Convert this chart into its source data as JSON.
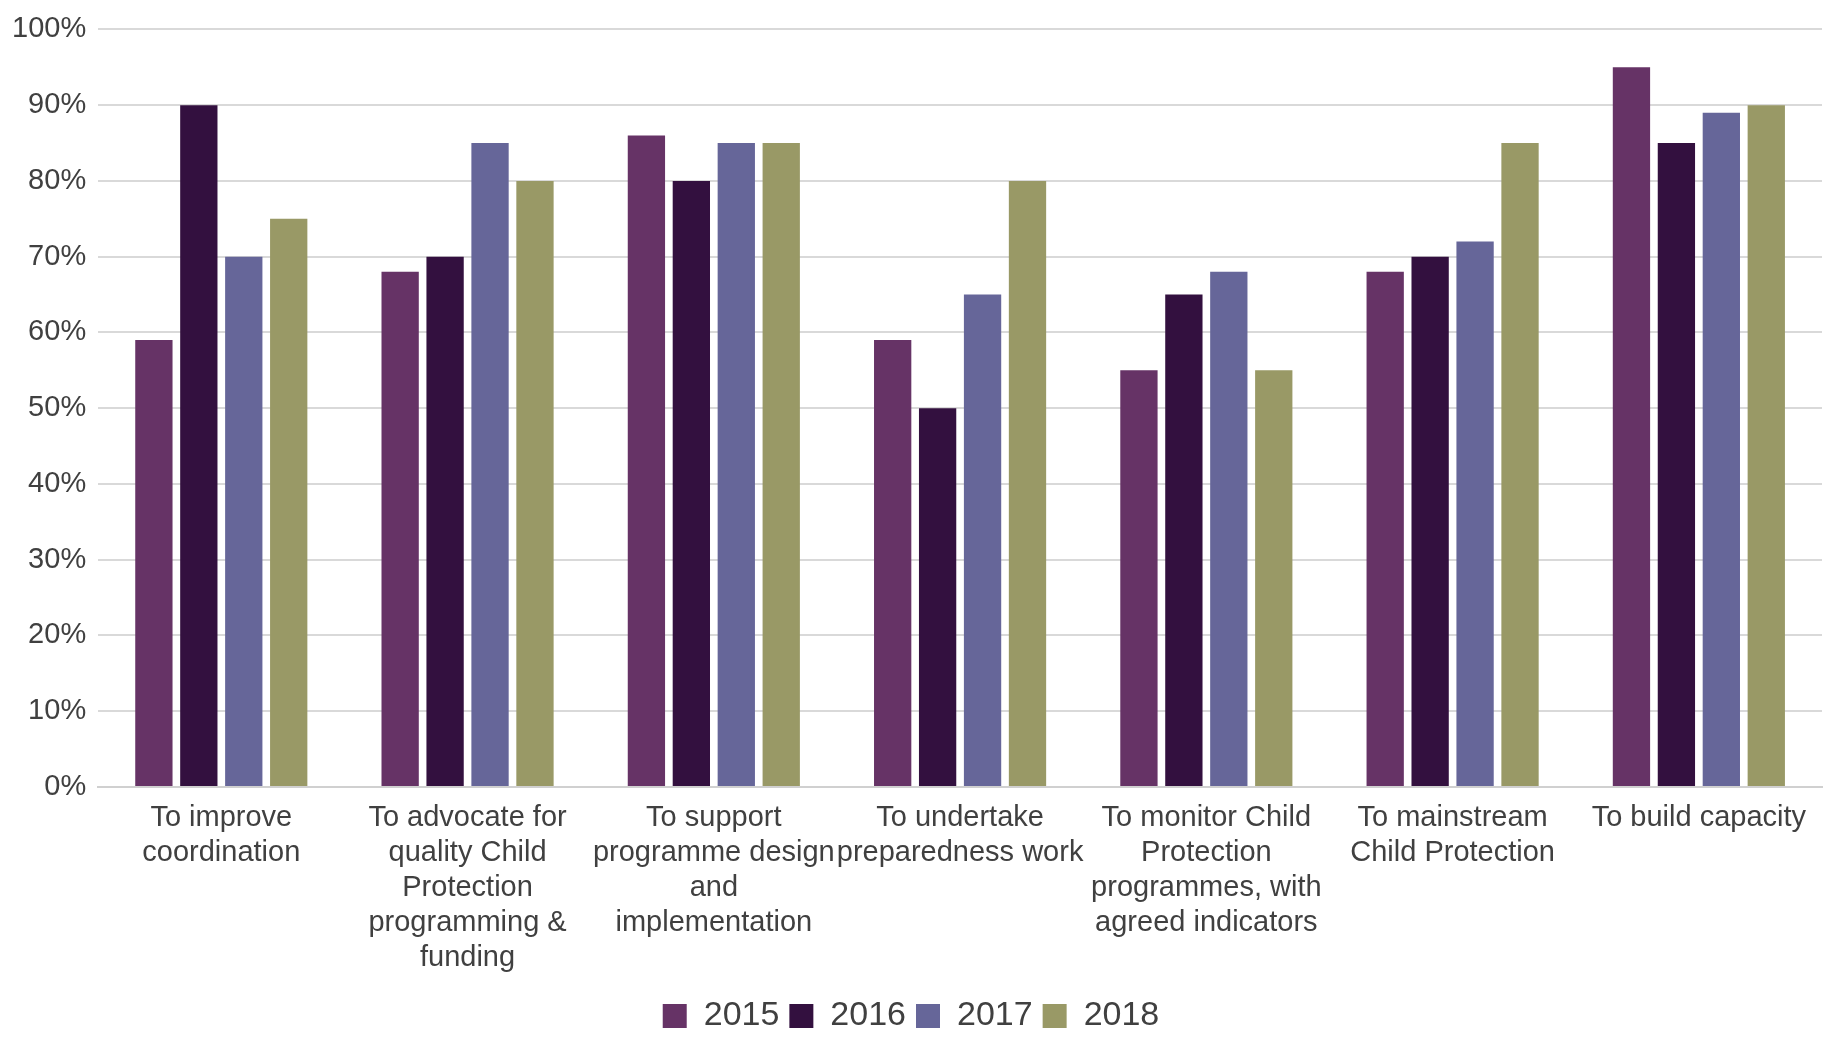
{
  "chart_data": {
    "type": "bar",
    "categories": [
      "To improve coordination",
      "To advocate for quality Child Protection programming & funding",
      "To support programme design and implementation",
      "To undertake preparedness work",
      "To monitor Child Protection programmes, with agreed indicators",
      "To mainstream Child Protection",
      "To build capacity"
    ],
    "series": [
      {
        "name": "2015",
        "color": "#663366",
        "values": [
          59,
          68,
          86,
          59,
          55,
          68,
          95
        ]
      },
      {
        "name": "2016",
        "color": "#33103f",
        "values": [
          90,
          70,
          80,
          50,
          65,
          70,
          85
        ]
      },
      {
        "name": "2017",
        "color": "#666699",
        "values": [
          70,
          85,
          85,
          65,
          68,
          72,
          89
        ]
      },
      {
        "name": "2018",
        "color": "#999966",
        "values": [
          75,
          80,
          85,
          80,
          55,
          85,
          90
        ]
      }
    ],
    "ylim": [
      0,
      100
    ],
    "yticks": [
      {
        "value": 0,
        "label": "0%"
      },
      {
        "value": 10,
        "label": "10%"
      },
      {
        "value": 20,
        "label": "20%"
      },
      {
        "value": 30,
        "label": "30%"
      },
      {
        "value": 40,
        "label": "40%"
      },
      {
        "value": 50,
        "label": "50%"
      },
      {
        "value": 60,
        "label": "60%"
      },
      {
        "value": 70,
        "label": "70%"
      },
      {
        "value": 80,
        "label": "80%"
      },
      {
        "value": 90,
        "label": "90%"
      },
      {
        "value": 100,
        "label": "100%"
      }
    ],
    "grid": "y",
    "legend": "bottom"
  }
}
